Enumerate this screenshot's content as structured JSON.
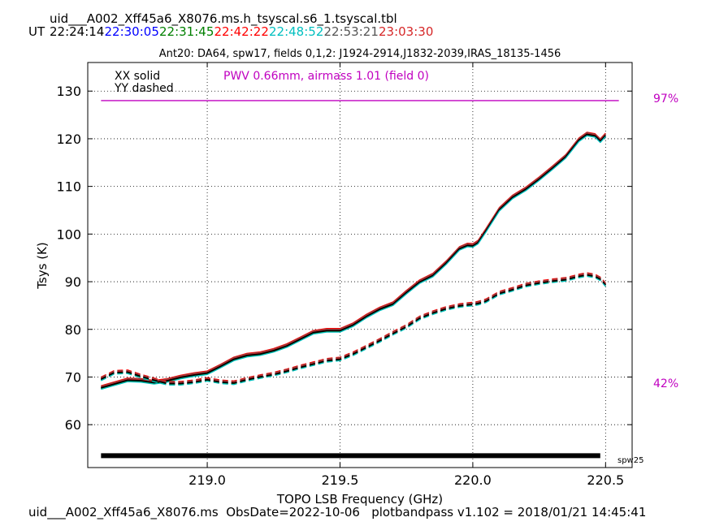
{
  "chart_data": {
    "type": "line",
    "header": {
      "filename": "uid___A002_Xff45a6_X8076.ms.h_tsyscal.s6_1.tsyscal.tbl",
      "ut_label": "UT",
      "ut_times": [
        {
          "text": "22:24:14",
          "color": "#000000"
        },
        {
          "text": "22:30:05",
          "color": "#0000ff"
        },
        {
          "text": "22:31:45",
          "color": "#008000"
        },
        {
          "text": "22:42:22",
          "color": "#ff0000"
        },
        {
          "text": "22:48:52",
          "color": "#00bfbf"
        },
        {
          "text": "22:53:21",
          "color": "#555555"
        },
        {
          "text": "23:03:30",
          "color": "#d62728"
        }
      ]
    },
    "title": "Ant20: DA64,  spw17,  fields 0,1,2: J1924-2914,J1832-2039,IRAS_18135-1456",
    "xlabel": "TOPO LSB Frequency (GHz)",
    "ylabel": "Tsys (K)",
    "xlim": [
      218.55,
      220.6
    ],
    "ylim": [
      51,
      136
    ],
    "xticks": [
      219.0,
      219.5,
      220.0,
      220.5
    ],
    "xtick_labels": [
      "219.0",
      "219.5",
      "220.0",
      "220.5"
    ],
    "yticks": [
      60,
      70,
      80,
      90,
      100,
      110,
      120,
      130
    ],
    "ytick_labels": [
      "60",
      "70",
      "80",
      "90",
      "100",
      "110",
      "120",
      "130"
    ],
    "grid": true,
    "legend": {
      "solid": "XX solid",
      "dashed": "YY dashed"
    },
    "pwv_label": "PWV 0.66mm, airmass 1.01 (field 0)",
    "pwv_color": "#c000c0",
    "transmission": {
      "value": 97,
      "label": "97%",
      "low_label": "42%",
      "level_ghz_range": [
        218.6,
        220.55
      ]
    },
    "spw_bar": {
      "label": "spw25",
      "from": 218.6,
      "to": 220.48,
      "y": 53.5
    },
    "series_colors": [
      "#000000",
      "#0000ff",
      "#008000",
      "#ff0000",
      "#00bfbf",
      "#555555",
      "#d62728"
    ],
    "x": [
      218.6,
      218.65,
      218.7,
      218.75,
      218.8,
      218.85,
      218.9,
      218.95,
      219.0,
      219.05,
      219.1,
      219.15,
      219.2,
      219.25,
      219.3,
      219.35,
      219.4,
      219.45,
      219.5,
      219.55,
      219.6,
      219.65,
      219.7,
      219.75,
      219.8,
      219.85,
      219.9,
      219.95,
      219.98,
      220.0,
      220.02,
      220.05,
      220.1,
      220.15,
      220.2,
      220.25,
      220.3,
      220.35,
      220.4,
      220.43,
      220.46,
      220.48,
      220.5
    ],
    "series": [
      {
        "pol": "XX",
        "style": "solid",
        "values": [
          67.8,
          68.6,
          69.4,
          69.3,
          68.9,
          69.3,
          70.0,
          70.5,
          70.9,
          72.3,
          73.8,
          74.6,
          74.9,
          75.6,
          76.6,
          78.0,
          79.4,
          79.8,
          79.8,
          81.0,
          82.8,
          84.3,
          85.4,
          87.8,
          90.0,
          91.4,
          94.0,
          97.0,
          97.7,
          97.6,
          98.3,
          100.8,
          105.2,
          107.8,
          109.5,
          111.6,
          113.9,
          116.3,
          119.8,
          121.0,
          120.7,
          119.6,
          120.8
        ]
      },
      {
        "pol": "YY",
        "style": "dashed",
        "values": [
          69.6,
          71.0,
          71.1,
          70.2,
          69.4,
          68.7,
          68.7,
          69.0,
          69.5,
          69.0,
          68.8,
          69.5,
          70.1,
          70.6,
          71.3,
          72.1,
          72.8,
          73.5,
          73.8,
          74.9,
          76.3,
          77.7,
          79.2,
          80.6,
          82.4,
          83.5,
          84.4,
          85.0,
          85.2,
          85.3,
          85.5,
          86.0,
          87.6,
          88.4,
          89.3,
          89.8,
          90.2,
          90.5,
          91.2,
          91.5,
          91.2,
          90.6,
          89.4
        ]
      }
    ],
    "footer": "uid___A002_Xff45a6_X8076.ms  ObsDate=2022-10-06   plotbandpass v1.102 = 2018/01/21 14:45:41"
  }
}
